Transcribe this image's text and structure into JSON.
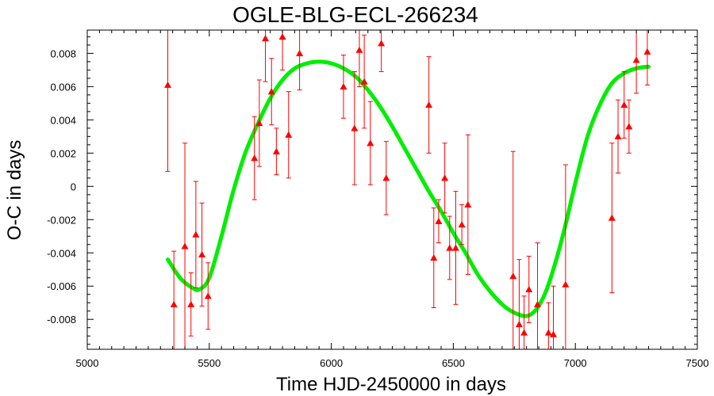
{
  "chart_data": {
    "type": "scatter",
    "title": "OGLE-BLG-ECL-266234",
    "xlabel": "Time HJD-2450000 in days",
    "ylabel": "O-C in days",
    "xlim": [
      5000,
      7500
    ],
    "ylim": [
      -0.0098,
      0.0094
    ],
    "xticks": [
      5000,
      5500,
      6000,
      6500,
      7000,
      7500
    ],
    "xtick_labels": [
      "5000",
      "5500",
      "6000",
      "6500",
      "7000",
      "7500"
    ],
    "yticks": [
      -0.008,
      -0.006,
      -0.004,
      -0.002,
      0,
      0.002,
      0.004,
      0.006,
      0.008
    ],
    "ytick_labels": [
      "-0.008",
      "-0.006",
      "-0.004",
      "-0.002",
      "0",
      "0.002",
      "0.004",
      "0.006",
      "0.008"
    ],
    "grid": false,
    "colors": {
      "points": "#ff0000",
      "fit": "#00ee00",
      "frame": "#000000"
    },
    "series": [
      {
        "kind": "errorbar",
        "points": [
          {
            "x": 5330,
            "y": 0.0061,
            "err": 0.0052
          },
          {
            "x": 5355,
            "y": -0.0071,
            "err": 0.0032
          },
          {
            "x": 5400,
            "y": -0.0036,
            "err": 0.0062
          },
          {
            "x": 5425,
            "y": -0.0071,
            "err": 0.0019
          },
          {
            "x": 5445,
            "y": -0.0029,
            "err": 0.0032
          },
          {
            "x": 5470,
            "y": -0.0041,
            "err": 0.0031
          },
          {
            "x": 5495,
            "y": -0.0066,
            "err": 0.002
          },
          {
            "x": 5685,
            "y": 0.0017,
            "err": 0.0025
          },
          {
            "x": 5705,
            "y": 0.0038,
            "err": 0.0026
          },
          {
            "x": 5730,
            "y": 0.0089,
            "err": 0.0026
          },
          {
            "x": 5755,
            "y": 0.0057,
            "err": 0.002
          },
          {
            "x": 5775,
            "y": 0.0021,
            "err": 0.0014
          },
          {
            "x": 5800,
            "y": 0.009,
            "err": 0.002
          },
          {
            "x": 5825,
            "y": 0.0031,
            "err": 0.0026
          },
          {
            "x": 5870,
            "y": 0.008,
            "err": 0.0022
          },
          {
            "x": 6050,
            "y": 0.006,
            "err": 0.0019
          },
          {
            "x": 6095,
            "y": 0.0035,
            "err": 0.0034
          },
          {
            "x": 6115,
            "y": 0.0082,
            "err": 0.0022
          },
          {
            "x": 6135,
            "y": 0.0063,
            "err": 0.0028
          },
          {
            "x": 6160,
            "y": 0.0026,
            "err": 0.0025
          },
          {
            "x": 6205,
            "y": 0.0086,
            "err": 0.0017
          },
          {
            "x": 6225,
            "y": 0.0005,
            "err": 0.0022
          },
          {
            "x": 6400,
            "y": 0.0049,
            "err": 0.0029
          },
          {
            "x": 6420,
            "y": -0.0043,
            "err": 0.003
          },
          {
            "x": 6440,
            "y": -0.0021,
            "err": 0.0013
          },
          {
            "x": 6465,
            "y": 0.0005,
            "err": 0.0021
          },
          {
            "x": 6485,
            "y": -0.0037,
            "err": 0.0019
          },
          {
            "x": 6510,
            "y": -0.0037,
            "err": 0.0034
          },
          {
            "x": 6535,
            "y": -0.0023,
            "err": 0.0012
          },
          {
            "x": 6560,
            "y": -0.0011,
            "err": 0.0042
          },
          {
            "x": 6745,
            "y": -0.0054,
            "err": 0.0075
          },
          {
            "x": 6770,
            "y": -0.0083,
            "err": 0.0039
          },
          {
            "x": 6790,
            "y": -0.0088,
            "err": 0.0022
          },
          {
            "x": 6810,
            "y": -0.0062,
            "err": 0.002
          },
          {
            "x": 6845,
            "y": -0.0071,
            "err": 0.0037
          },
          {
            "x": 6890,
            "y": -0.0088,
            "err": 0.0018
          },
          {
            "x": 6910,
            "y": -0.0089,
            "err": 0.0029
          },
          {
            "x": 6960,
            "y": -0.0059,
            "err": 0.0072
          },
          {
            "x": 7150,
            "y": -0.0019,
            "err": 0.0045
          },
          {
            "x": 7175,
            "y": 0.003,
            "err": 0.0022
          },
          {
            "x": 7200,
            "y": 0.0049,
            "err": 0.002
          },
          {
            "x": 7220,
            "y": 0.0036,
            "err": 0.0016
          },
          {
            "x": 7250,
            "y": 0.0076,
            "err": 0.002
          },
          {
            "x": 7295,
            "y": 0.0081,
            "err": 0.002
          }
        ]
      },
      {
        "kind": "fit",
        "points": [
          {
            "x": 5330,
            "y": -0.0044
          },
          {
            "x": 5380,
            "y": -0.0055
          },
          {
            "x": 5430,
            "y": -0.0061
          },
          {
            "x": 5460,
            "y": -0.0062
          },
          {
            "x": 5500,
            "y": -0.0055
          },
          {
            "x": 5550,
            "y": -0.003
          },
          {
            "x": 5600,
            "y": -0.0002
          },
          {
            "x": 5650,
            "y": 0.0021
          },
          {
            "x": 5700,
            "y": 0.0038
          },
          {
            "x": 5750,
            "y": 0.0053
          },
          {
            "x": 5800,
            "y": 0.0064
          },
          {
            "x": 5850,
            "y": 0.0071
          },
          {
            "x": 5900,
            "y": 0.0074
          },
          {
            "x": 5950,
            "y": 0.0075
          },
          {
            "x": 6000,
            "y": 0.0074
          },
          {
            "x": 6050,
            "y": 0.0071
          },
          {
            "x": 6100,
            "y": 0.0066
          },
          {
            "x": 6150,
            "y": 0.0058
          },
          {
            "x": 6200,
            "y": 0.0048
          },
          {
            "x": 6250,
            "y": 0.0036
          },
          {
            "x": 6300,
            "y": 0.0023
          },
          {
            "x": 6350,
            "y": 0.001
          },
          {
            "x": 6400,
            "y": -0.0003
          },
          {
            "x": 6450,
            "y": -0.0015
          },
          {
            "x": 6500,
            "y": -0.0028
          },
          {
            "x": 6550,
            "y": -0.004
          },
          {
            "x": 6600,
            "y": -0.0053
          },
          {
            "x": 6650,
            "y": -0.0063
          },
          {
            "x": 6700,
            "y": -0.0071
          },
          {
            "x": 6750,
            "y": -0.0076
          },
          {
            "x": 6800,
            "y": -0.0078
          },
          {
            "x": 6840,
            "y": -0.0074
          },
          {
            "x": 6880,
            "y": -0.0063
          },
          {
            "x": 6920,
            "y": -0.0045
          },
          {
            "x": 6960,
            "y": -0.0023
          },
          {
            "x": 7000,
            "y": 0.0002
          },
          {
            "x": 7050,
            "y": 0.003
          },
          {
            "x": 7100,
            "y": 0.0049
          },
          {
            "x": 7150,
            "y": 0.0062
          },
          {
            "x": 7200,
            "y": 0.0068
          },
          {
            "x": 7250,
            "y": 0.0071
          },
          {
            "x": 7300,
            "y": 0.0072
          }
        ]
      }
    ]
  }
}
